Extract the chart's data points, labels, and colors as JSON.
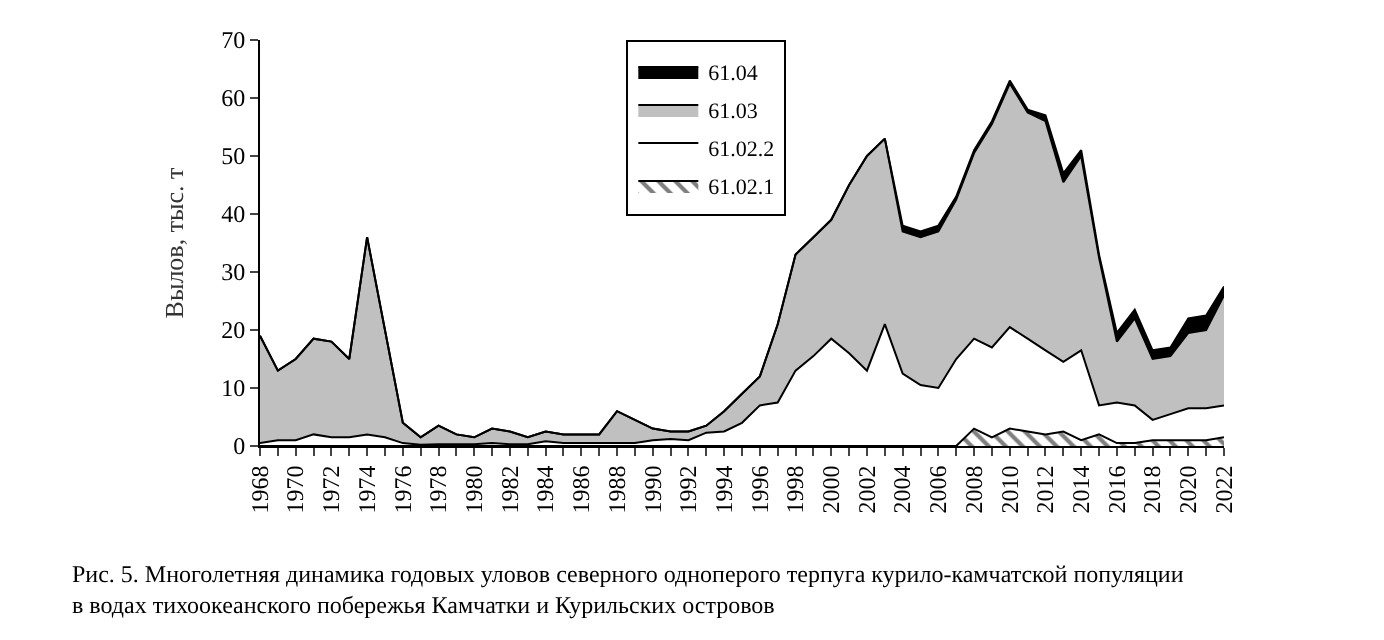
{
  "chart_data": {
    "type": "area",
    "stacked": true,
    "ylabel": "Вылов, тыс. т",
    "annotations": [
      "Рис. 5. Многолетняя динамика годовых уловов северного одноперого терпуга курило-камчатской популяции в водах тихоокеанского побережья Камчатки и Курильских островов"
    ],
    "x": [
      1968,
      1969,
      1970,
      1971,
      1972,
      1973,
      1974,
      1975,
      1976,
      1977,
      1978,
      1979,
      1980,
      1981,
      1982,
      1983,
      1984,
      1985,
      1986,
      1987,
      1988,
      1989,
      1990,
      1991,
      1992,
      1993,
      1994,
      1995,
      1996,
      1997,
      1998,
      1999,
      2000,
      2001,
      2002,
      2003,
      2004,
      2005,
      2006,
      2007,
      2008,
      2009,
      2010,
      2011,
      2012,
      2013,
      2014,
      2015,
      2016,
      2017,
      2018,
      2019,
      2020,
      2021,
      2022
    ],
    "series": [
      {
        "name": "61.02.1",
        "color": "#000000",
        "values": [
          0,
          0,
          0,
          0,
          0,
          0,
          0,
          0,
          0,
          0,
          0,
          0,
          0,
          0,
          0,
          0,
          0,
          0,
          0,
          0,
          0,
          0,
          0,
          0,
          0,
          0,
          0,
          0,
          0,
          0,
          0,
          0,
          0,
          0,
          0,
          0,
          0,
          0,
          0,
          0,
          3,
          1.5,
          3,
          2.5,
          2,
          2.5,
          1,
          2,
          0.5,
          0.5,
          1,
          1,
          1,
          1,
          1.5
        ]
      },
      {
        "name": "61.02.2",
        "color": "#ffffff",
        "values": [
          0.5,
          1,
          1,
          2,
          1.5,
          1.5,
          2,
          1.5,
          0.5,
          0.2,
          0.3,
          0.3,
          0.3,
          0.5,
          0.3,
          0.3,
          0.8,
          0.5,
          0.5,
          0.5,
          0.5,
          0.5,
          1,
          1.2,
          1,
          2.3,
          2.5,
          4,
          7,
          7.5,
          13,
          15.5,
          18.5,
          16,
          13,
          21,
          12.5,
          10.5,
          10,
          15,
          15.5,
          15.5,
          17.5,
          16,
          14.5,
          12,
          15.5,
          5,
          7,
          6.5,
          3.5,
          4.5,
          5.5,
          5.5,
          5.5
        ]
      },
      {
        "name": "61.03",
        "color": "#c0c0c0",
        "values": [
          18.5,
          12,
          14,
          16.5,
          16.5,
          13.5,
          34,
          18.5,
          3.5,
          1.3,
          3.2,
          1.7,
          1.2,
          2.5,
          2.2,
          1.2,
          1.7,
          1.5,
          1.5,
          1.5,
          5.5,
          4,
          2,
          1.3,
          1.5,
          1.2,
          3.5,
          5,
          5,
          13.5,
          20,
          20.5,
          20.5,
          29,
          37,
          32,
          24.5,
          25.5,
          27,
          27.5,
          32,
          38.5,
          42,
          39,
          39.5,
          31,
          33.5,
          25.5,
          10.5,
          15,
          10.5,
          10,
          13,
          13.5,
          19
        ]
      },
      {
        "name": "61.04",
        "color": "#000000",
        "values": [
          0,
          0,
          0,
          0,
          0,
          0,
          0,
          0,
          0,
          0,
          0,
          0,
          0,
          0,
          0,
          0,
          0,
          0,
          0,
          0,
          0,
          0,
          0,
          0,
          0,
          0,
          0,
          0,
          0,
          0,
          0,
          0,
          0,
          0,
          0,
          0,
          1,
          1,
          1,
          0.5,
          0.5,
          0.5,
          0.5,
          0.5,
          1,
          1.5,
          1,
          0.5,
          1.5,
          1.5,
          1.5,
          1.5,
          2.5,
          2.5,
          1.5
        ]
      }
    ],
    "xlim": [
      1968,
      2022
    ],
    "xticks": [
      1968,
      {
        "value": 1969,
        "label": null
      },
      1970,
      {
        "value": 1971,
        "label": null
      },
      1972,
      {
        "value": 1973,
        "label": null
      },
      1974,
      {
        "value": 1975,
        "label": null
      },
      1976,
      {
        "value": 1977,
        "label": null
      },
      1978,
      {
        "value": 1979,
        "label": null
      },
      1980,
      {
        "value": 1981,
        "label": null
      },
      1982,
      {
        "value": 1983,
        "label": null
      },
      1984,
      {
        "value": 1985,
        "label": null
      },
      1986,
      {
        "value": 1987,
        "label": null
      },
      1988,
      {
        "value": 1989,
        "label": null
      },
      1990,
      {
        "value": 1991,
        "label": null
      },
      1992,
      {
        "value": 1993,
        "label": null
      },
      1994,
      {
        "value": 1995,
        "label": null
      },
      1996,
      {
        "value": 1997,
        "label": null
      },
      1998,
      {
        "value": 1999,
        "label": null
      },
      2000,
      {
        "value": 2001,
        "label": null
      },
      2002,
      {
        "value": 2003,
        "label": null
      },
      2004,
      {
        "value": 2005,
        "label": null
      },
      2006,
      {
        "value": 2007,
        "label": null
      },
      2008,
      {
        "value": 2009,
        "label": null
      },
      2010,
      {
        "value": 2011,
        "label": null
      },
      2012,
      {
        "value": 2013,
        "label": null
      },
      2014,
      {
        "value": 2015,
        "label": null
      },
      2016,
      {
        "value": 2017,
        "label": null
      },
      2018,
      {
        "value": 2019,
        "label": null
      },
      2020,
      {
        "value": 2021,
        "label": null
      },
      2022
    ],
    "ylim": [
      0,
      70
    ],
    "yticks": [
      0,
      10,
      20,
      30,
      40,
      50,
      60,
      70
    ],
    "legend": "top left"
  }
}
